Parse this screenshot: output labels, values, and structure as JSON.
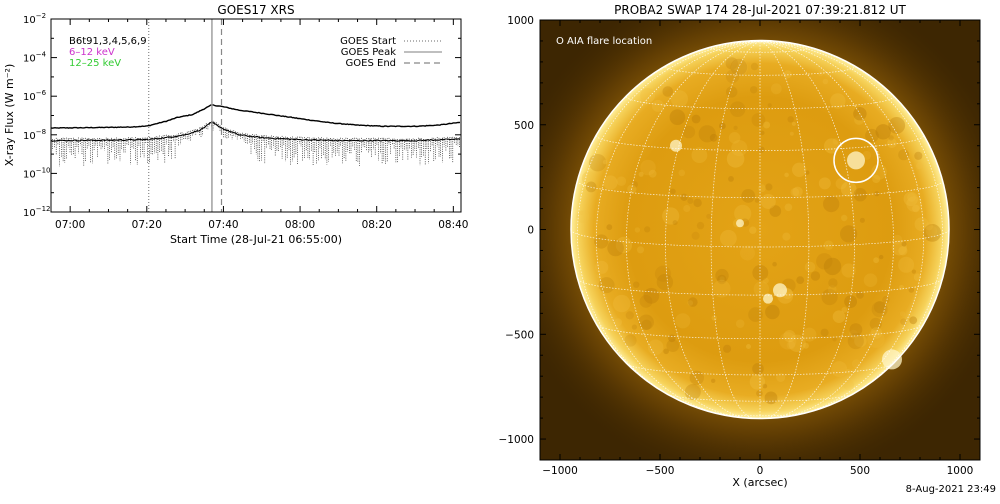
{
  "footer_timestamp": "8-Aug-2021 23:49",
  "chart_data": [
    {
      "type": "line",
      "title": "GOES17 XRS",
      "xlabel": "Start Time (28-Jul-21 06:55:00)",
      "ylabel": "X-ray Flux (W m⁻²)",
      "x_domain_minutes": [
        55,
        162
      ],
      "x_ticks": [
        {
          "minute": 60,
          "label": "07:00"
        },
        {
          "minute": 80,
          "label": "07:20"
        },
        {
          "minute": 100,
          "label": "07:40"
        },
        {
          "minute": 120,
          "label": "08:00"
        },
        {
          "minute": 140,
          "label": "08:20"
        },
        {
          "minute": 160,
          "label": "08:40"
        }
      ],
      "y_scale": "log",
      "y_range_exp": [
        -12,
        -2
      ],
      "y_ticks": [
        {
          "exp": -2,
          "base": "10",
          "sup": "−2"
        },
        {
          "exp": -4,
          "base": "10",
          "sup": "−4"
        },
        {
          "exp": -6,
          "base": "10",
          "sup": "−6"
        },
        {
          "exp": -8,
          "base": "10",
          "sup": "−8"
        },
        {
          "exp": -10,
          "base": "10",
          "sup": "−10"
        },
        {
          "exp": -12,
          "base": "10",
          "sup": "−12"
        }
      ],
      "channel_labels": [
        {
          "text": "B6t91,3,4,5,6,9",
          "color": "#000000"
        },
        {
          "text": "6–12 keV",
          "color": "#cc33cc"
        },
        {
          "text": "12–25 keV",
          "color": "#33cc33"
        }
      ],
      "event_lines": [
        {
          "name": "GOES Start",
          "minute": 80.5,
          "style": "dotted"
        },
        {
          "name": "GOES Peak",
          "minute": 97.0,
          "style": "solid"
        },
        {
          "name": "GOES End",
          "minute": 99.5,
          "style": "dashed"
        }
      ],
      "series": [
        {
          "name": "long",
          "points": [
            [
              55,
              -7.65
            ],
            [
              65,
              -7.63
            ],
            [
              75,
              -7.6
            ],
            [
              80,
              -7.55
            ],
            [
              85,
              -7.3
            ],
            [
              88,
              -7.1
            ],
            [
              92,
              -6.95
            ],
            [
              95,
              -6.65
            ],
            [
              97,
              -6.45
            ],
            [
              100,
              -6.55
            ],
            [
              104,
              -6.72
            ],
            [
              110,
              -6.88
            ],
            [
              116,
              -7.05
            ],
            [
              122,
              -7.22
            ],
            [
              128,
              -7.38
            ],
            [
              135,
              -7.5
            ],
            [
              142,
              -7.56
            ],
            [
              150,
              -7.56
            ],
            [
              156,
              -7.5
            ],
            [
              162,
              -7.35
            ]
          ]
        },
        {
          "name": "short",
          "points": [
            [
              55,
              -8.3
            ],
            [
              70,
              -8.28
            ],
            [
              80,
              -8.25
            ],
            [
              85,
              -8.15
            ],
            [
              90,
              -8.0
            ],
            [
              94,
              -7.75
            ],
            [
              97,
              -7.35
            ],
            [
              100,
              -7.7
            ],
            [
              104,
              -8.0
            ],
            [
              110,
              -8.15
            ],
            [
              120,
              -8.25
            ],
            [
              130,
              -8.3
            ],
            [
              140,
              -8.3
            ],
            [
              150,
              -8.3
            ],
            [
              162,
              -8.22
            ]
          ]
        }
      ]
    },
    {
      "type": "scatter",
      "title": "PROBA2 SWAP 174 28-Jul-2021 07:39:21.812 UT",
      "xlabel": "X (arcsec)",
      "ylabel": "",
      "xlim": [
        -1100,
        1100
      ],
      "ylim": [
        -1100,
        1000
      ],
      "x_ticks": [
        -1000,
        -500,
        0,
        500,
        1000
      ],
      "y_ticks": [
        1000,
        500,
        0,
        -500,
        -1000
      ],
      "tick_labels_x": [
        "−1000",
        "−500",
        "0",
        "500",
        "1000"
      ],
      "tick_labels_y": [
        "1000",
        "500",
        "0",
        "−500",
        "−1000"
      ],
      "solar_radius_arcsec": 945,
      "legend_text": "O AIA flare location",
      "flare_location": {
        "x": 480,
        "y": 330,
        "r": 110
      }
    }
  ]
}
